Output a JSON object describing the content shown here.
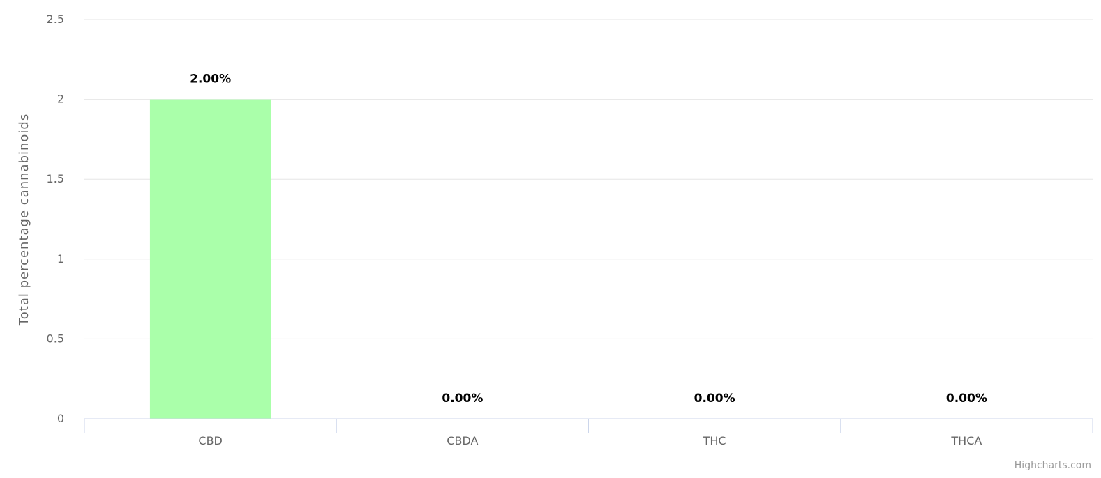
{
  "chart_data": {
    "type": "bar",
    "categories": [
      "CBD",
      "CBDA",
      "THC",
      "THCA"
    ],
    "values": [
      2.0,
      0.0,
      0.0,
      0.0
    ],
    "data_labels": [
      "2.00%",
      "0.00%",
      "0.00%",
      "0.00%"
    ],
    "title": "",
    "xlabel": "",
    "ylabel": "Total percentage cannabinoids",
    "ylim": [
      0,
      2.5
    ],
    "yticks": [
      "0",
      "0.5",
      "1",
      "1.5",
      "2",
      "2.5"
    ],
    "grid": true,
    "legend": "none",
    "colors": {
      "bar": "#aaffaa",
      "grid": "#e6e6e6",
      "axis": "#ccd6eb"
    }
  },
  "credits": "Highcharts.com"
}
